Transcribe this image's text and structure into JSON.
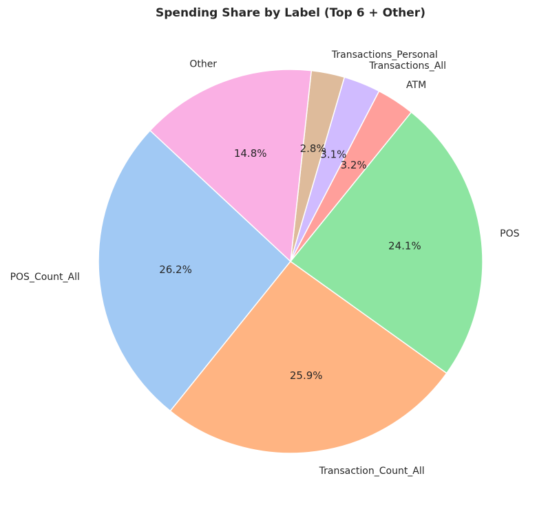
{
  "chart_data": {
    "type": "pie",
    "title": "Spending Share by Label (Top 6 + Other)",
    "start_angle_deg": 137,
    "direction": "counterclockwise",
    "slices": [
      {
        "label": "POS_Count_All",
        "value": 26.2,
        "pct_label": "26.2%",
        "color": "#a1c9f4"
      },
      {
        "label": "Transaction_Count_All",
        "value": 25.9,
        "pct_label": "25.9%",
        "color": "#ffb482"
      },
      {
        "label": "POS",
        "value": 24.1,
        "pct_label": "24.1%",
        "color": "#8de5a1"
      },
      {
        "label": "ATM",
        "value": 3.2,
        "pct_label": "3.2%",
        "color": "#ff9f9b"
      },
      {
        "label": "Transactions_All",
        "value": 3.1,
        "pct_label": "3.1%",
        "color": "#d0bbff"
      },
      {
        "label": "Transactions_Personal",
        "value": 2.8,
        "pct_label": "2.8%",
        "color": "#debb9b"
      },
      {
        "label": "Other",
        "value": 14.8,
        "pct_label": "14.8%",
        "color": "#fab0e4"
      }
    ]
  }
}
